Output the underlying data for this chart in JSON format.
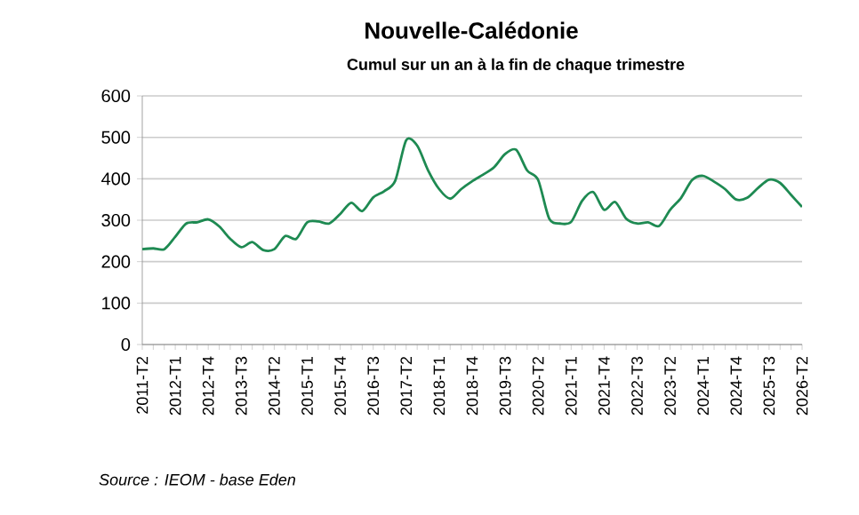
{
  "chart_data": {
    "type": "line",
    "title": "Nouvelle-Calédonie",
    "subtitle": "Cumul sur un an à la fin de chaque trimestre",
    "categories": [
      "2011-T2",
      null,
      null,
      "2012-T1",
      null,
      null,
      "2012-T4",
      null,
      null,
      "2013-T3",
      null,
      null,
      "2014-T2",
      null,
      null,
      "2015-T1",
      null,
      null,
      "2015-T4",
      null,
      null,
      "2016-T3",
      null,
      null,
      "2017-T2",
      null,
      null,
      "2018-T1",
      null,
      null,
      "2018-T4",
      null,
      null,
      "2019-T3",
      null,
      null,
      "2020-T2",
      null,
      null,
      "2021-T1",
      null,
      null,
      "2021-T4",
      null,
      null,
      "2022-T3",
      null,
      null,
      "2023-T2",
      null,
      null,
      "2024-T1",
      null,
      null,
      "2024-T4",
      null,
      null,
      "2025-T3",
      null,
      null,
      "2026-T2"
    ],
    "series": [
      {
        "color": "#1e8a52",
        "values": [
          230,
          232,
          230,
          260,
          292,
          295,
          302,
          285,
          255,
          235,
          247,
          228,
          230,
          262,
          255,
          295,
          297,
          292,
          315,
          342,
          322,
          355,
          370,
          395,
          493,
          480,
          420,
          375,
          352,
          375,
          394,
          410,
          428,
          460,
          470,
          420,
          397,
          304,
          292,
          296,
          347,
          368,
          325,
          344,
          304,
          292,
          295,
          286,
          325,
          354,
          397,
          407,
          393,
          375,
          350,
          354,
          378,
          398,
          390,
          361,
          332
        ]
      }
    ],
    "ylim": [
      0,
      600
    ],
    "yticks": [
      0,
      100,
      200,
      300,
      400,
      500,
      600
    ],
    "grid": "y",
    "marker": "none",
    "line_style": "solid",
    "annotations": [
      "Source : IEOM - base Eden"
    ]
  }
}
